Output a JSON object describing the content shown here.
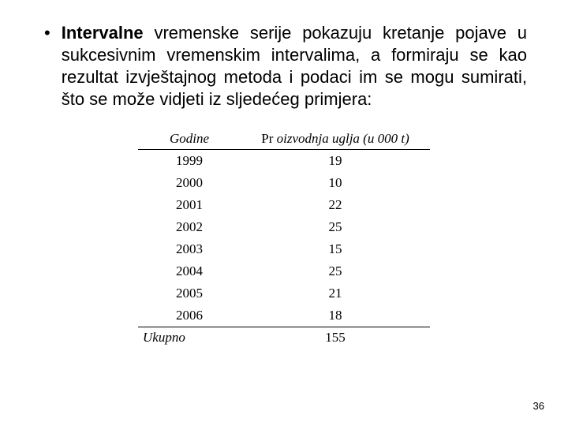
{
  "bullet_glyph": "•",
  "paragraph": {
    "bold_lead": "Intervalne",
    "rest": " vremenske serije pokazuju kretanje pojave u sukcesivnim vremenskim intervalima, a formiraju se kao rezultat izvještajnog metoda i podaci im se mogu sumirati, što se može vidjeti iz sljedećeg primjera:"
  },
  "table": {
    "header_year": "Godine",
    "header_value_prefix": "Pr",
    "header_value_italic": " oizvodnja uglja (u 000  t)",
    "rows": [
      {
        "year": "1999",
        "value": "19"
      },
      {
        "year": "2000",
        "value": "10"
      },
      {
        "year": "2001",
        "value": "22"
      },
      {
        "year": "2002",
        "value": "25"
      },
      {
        "year": "2003",
        "value": "15"
      },
      {
        "year": "2004",
        "value": "25"
      },
      {
        "year": "2005",
        "value": "21"
      },
      {
        "year": "2006",
        "value": "18"
      }
    ],
    "total_label": "Ukupno",
    "total_value": "155"
  },
  "page_number": "36"
}
